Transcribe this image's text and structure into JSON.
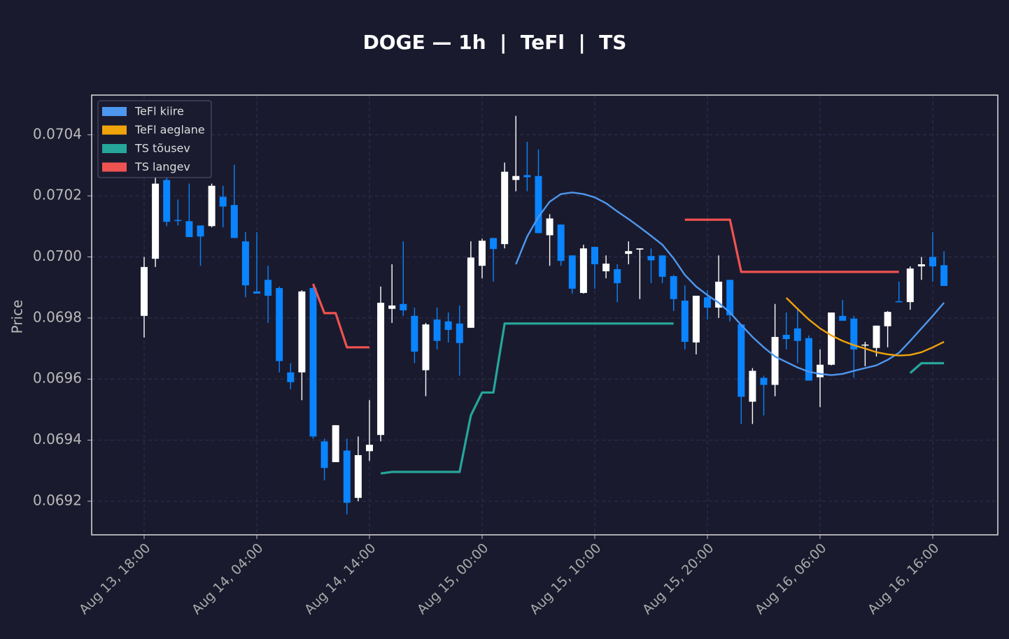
{
  "chart_data": {
    "type": "candlestick",
    "title": "DOGE — 1h  |  TeFl  |  TS",
    "y_label": "Price",
    "categories": [
      "Aug 13, 18:00",
      null,
      null,
      null,
      null,
      null,
      null,
      null,
      null,
      null,
      "Aug 14, 04:00",
      null,
      null,
      null,
      null,
      null,
      null,
      null,
      null,
      null,
      "Aug 14, 14:00",
      null,
      null,
      null,
      null,
      null,
      null,
      null,
      null,
      null,
      "Aug 15, 00:00",
      null,
      null,
      null,
      null,
      null,
      null,
      null,
      null,
      null,
      "Aug 15, 10:00",
      null,
      null,
      null,
      null,
      null,
      null,
      null,
      null,
      null,
      "Aug 15, 20:00",
      null,
      null,
      null,
      null,
      null,
      null,
      null,
      null,
      null,
      "Aug 16, 06:00",
      null,
      null,
      null,
      null,
      null,
      null,
      null,
      null,
      null,
      "Aug 16, 16:00",
      null
    ],
    "open": [
      0.069807,
      0.069994,
      0.070252,
      0.070121,
      0.070117,
      0.070103,
      0.070101,
      0.070197,
      0.07017,
      0.070051,
      0.069887,
      0.069925,
      0.069898,
      0.069622,
      0.069622,
      0.069898,
      0.069396,
      0.069328,
      0.069366,
      0.069211,
      0.069364,
      0.069417,
      0.06983,
      0.069846,
      0.069807,
      0.069629,
      0.069795,
      0.069789,
      0.069782,
      0.069768,
      0.069971,
      0.070062,
      0.070042,
      0.070252,
      0.070268,
      0.070265,
      0.070071,
      0.070106,
      0.070005,
      0.069882,
      0.070033,
      0.069953,
      0.06996,
      0.07001,
      0.070024,
      0.070003,
      0.070005,
      0.069937,
      0.069857,
      0.06972,
      0.069868,
      0.069834,
      0.069925,
      0.069779,
      0.069526,
      0.069604,
      0.069581,
      0.069745,
      0.069766,
      0.069734,
      0.069606,
      0.069647,
      0.069807,
      0.069798,
      0.069711,
      0.069702,
      0.069773,
      0.069855,
      0.069852,
      0.069969,
      0.07,
      0.069973
    ],
    "high": [
      0.07,
      0.070263,
      0.070268,
      0.070188,
      0.07024,
      0.070103,
      0.07024,
      0.070233,
      0.070302,
      0.070081,
      0.070081,
      0.069971,
      0.069903,
      0.069652,
      0.069891,
      0.069903,
      0.069405,
      0.069449,
      0.069405,
      0.069412,
      0.069531,
      0.069903,
      0.069976,
      0.070051,
      0.069834,
      0.069784,
      0.069834,
      0.069818,
      0.069841,
      0.070051,
      0.07006,
      0.070062,
      0.070309,
      0.070462,
      0.070377,
      0.070352,
      0.07014,
      0.070106,
      0.070005,
      0.07004,
      0.070033,
      0.070005,
      0.069976,
      0.070051,
      0.070028,
      0.070028,
      0.070005,
      0.069941,
      0.069907,
      0.069873,
      0.069891,
      0.070005,
      0.069925,
      0.069779,
      0.069636,
      0.069611,
      0.069846,
      0.069818,
      0.069834,
      0.069743,
      0.069697,
      0.069818,
      0.069859,
      0.069807,
      0.069722,
      0.069775,
      0.069823,
      0.069919,
      0.069969,
      0.07,
      0.070081,
      0.070019
    ],
    "low": [
      0.069736,
      0.069967,
      0.070101,
      0.070103,
      0.070065,
      0.069971,
      0.070097,
      0.070097,
      0.070062,
      0.069868,
      0.06988,
      0.069784,
      0.069622,
      0.069567,
      0.069531,
      0.069405,
      0.069268,
      0.069328,
      0.069157,
      0.0692,
      0.069332,
      0.069396,
      0.069784,
      0.069807,
      0.069652,
      0.069544,
      0.069697,
      0.06972,
      0.069611,
      0.069768,
      0.06993,
      0.069919,
      0.070028,
      0.070215,
      0.070215,
      0.070078,
      0.069971,
      0.069971,
      0.06988,
      0.06988,
      0.069896,
      0.06993,
      0.069852,
      0.069976,
      0.069862,
      0.069914,
      0.069914,
      0.069823,
      0.069697,
      0.069681,
      0.069795,
      0.0698,
      0.069789,
      0.069453,
      0.069453,
      0.069481,
      0.069544,
      0.069697,
      0.069652,
      0.069595,
      0.069508,
      0.069645,
      0.069791,
      0.069604,
      0.069642,
      0.069674,
      0.069704,
      0.069852,
      0.069827,
      0.069925,
      0.069919,
      0.069905
    ],
    "close": [
      0.069967,
      0.07024,
      0.070115,
      0.070119,
      0.070065,
      0.070067,
      0.070233,
      0.070165,
      0.070062,
      0.069907,
      0.06988,
      0.069873,
      0.069659,
      0.06959,
      0.069887,
      0.069412,
      0.069309,
      0.069449,
      0.069195,
      0.069351,
      0.069385,
      0.06985,
      0.069841,
      0.069825,
      0.06969,
      0.069779,
      0.069725,
      0.069761,
      0.069718,
      0.069998,
      0.070053,
      0.070026,
      0.070279,
      0.070265,
      0.070261,
      0.070078,
      0.070126,
      0.069987,
      0.069896,
      0.070028,
      0.069976,
      0.069978,
      0.069914,
      0.070019,
      0.070028,
      0.069989,
      0.069935,
      0.069862,
      0.069722,
      0.069873,
      0.069834,
      0.069919,
      0.069809,
      0.069542,
      0.069627,
      0.069581,
      0.069738,
      0.069731,
      0.069725,
      0.069595,
      0.069647,
      0.069818,
      0.069791,
      0.069697,
      0.069713,
      0.069775,
      0.06982,
      0.069852,
      0.069962,
      0.069976,
      0.069969,
      0.069905
    ],
    "up_color": "#ffffff",
    "down_color": "#0a84ff",
    "series": [
      {
        "name": "TeFl kiire",
        "color": "#4e97ee",
        "values": [
          null,
          null,
          null,
          null,
          null,
          null,
          null,
          null,
          null,
          null,
          null,
          null,
          null,
          null,
          null,
          null,
          null,
          null,
          null,
          null,
          null,
          null,
          null,
          null,
          null,
          null,
          null,
          null,
          null,
          null,
          null,
          null,
          null,
          0.069976,
          0.070067,
          0.070131,
          0.070181,
          0.070206,
          0.070211,
          0.070206,
          0.070195,
          0.070176,
          0.070149,
          0.070124,
          0.070097,
          0.070069,
          0.07004,
          0.069995,
          0.069941,
          0.069903,
          0.069875,
          0.06985,
          0.069818,
          0.069777,
          0.069738,
          0.069704,
          0.069674,
          0.069656,
          0.069638,
          0.069624,
          0.069617,
          0.069613,
          0.069617,
          0.069627,
          0.069636,
          0.069645,
          0.069663,
          0.069686,
          0.069725,
          0.069766,
          0.069807,
          0.06985
        ]
      },
      {
        "name": "TeFl aeglane",
        "color": "#f0a30a",
        "values": [
          null,
          null,
          null,
          null,
          null,
          null,
          null,
          null,
          null,
          null,
          null,
          null,
          null,
          null,
          null,
          null,
          null,
          null,
          null,
          null,
          null,
          null,
          null,
          null,
          null,
          null,
          null,
          null,
          null,
          null,
          null,
          null,
          null,
          null,
          null,
          null,
          null,
          null,
          null,
          null,
          null,
          null,
          null,
          null,
          null,
          null,
          null,
          null,
          null,
          null,
          null,
          null,
          null,
          null,
          null,
          null,
          null,
          0.069866,
          0.06983,
          0.069795,
          0.069766,
          0.069743,
          0.069725,
          0.069711,
          0.0697,
          0.069688,
          0.069681,
          0.069677,
          0.069679,
          0.069688,
          0.069704,
          0.069722
        ]
      },
      {
        "name": "TS tõusev",
        "color": "#26a69a",
        "values": [
          null,
          null,
          null,
          null,
          null,
          null,
          null,
          null,
          null,
          null,
          null,
          null,
          null,
          null,
          null,
          null,
          null,
          null,
          null,
          null,
          null,
          0.069291,
          0.069296,
          0.069296,
          0.069296,
          0.069296,
          0.069296,
          0.069296,
          0.069296,
          0.069481,
          0.069556,
          0.069556,
          0.069782,
          0.069782,
          0.069782,
          0.069782,
          0.069782,
          0.069782,
          0.069782,
          0.069782,
          0.069782,
          0.069782,
          0.069782,
          0.069782,
          0.069782,
          0.069782,
          0.069782,
          0.069782,
          null,
          null,
          null,
          null,
          null,
          null,
          null,
          null,
          null,
          null,
          null,
          null,
          null,
          null,
          null,
          null,
          null,
          null,
          null,
          null,
          0.06962,
          0.069652,
          0.069652,
          0.069652
        ]
      },
      {
        "name": "TS langev",
        "color": "#ef5350",
        "values": [
          null,
          null,
          null,
          null,
          null,
          null,
          null,
          null,
          null,
          null,
          null,
          null,
          null,
          null,
          null,
          0.069912,
          0.069816,
          0.069816,
          0.069704,
          0.069704,
          0.069704,
          null,
          null,
          null,
          null,
          null,
          null,
          null,
          null,
          null,
          null,
          null,
          null,
          null,
          null,
          null,
          null,
          null,
          null,
          null,
          null,
          null,
          null,
          null,
          null,
          null,
          null,
          null,
          0.070122,
          0.070122,
          0.070122,
          0.070122,
          0.070122,
          0.069951,
          0.069951,
          0.069951,
          0.069951,
          0.069951,
          0.069951,
          0.069951,
          0.069951,
          0.069951,
          0.069951,
          0.069951,
          0.069951,
          0.069951,
          0.069951,
          0.069951,
          null,
          null,
          null,
          null
        ]
      }
    ],
    "ylim": [
      0.06909,
      0.07053
    ],
    "yticks": [
      0.0692,
      0.0694,
      0.0696,
      0.0698,
      {
        "value": 0.07,
        "label": "0.0700"
      },
      0.0702,
      0.0704
    ],
    "grid": true,
    "legend": "upper left"
  }
}
